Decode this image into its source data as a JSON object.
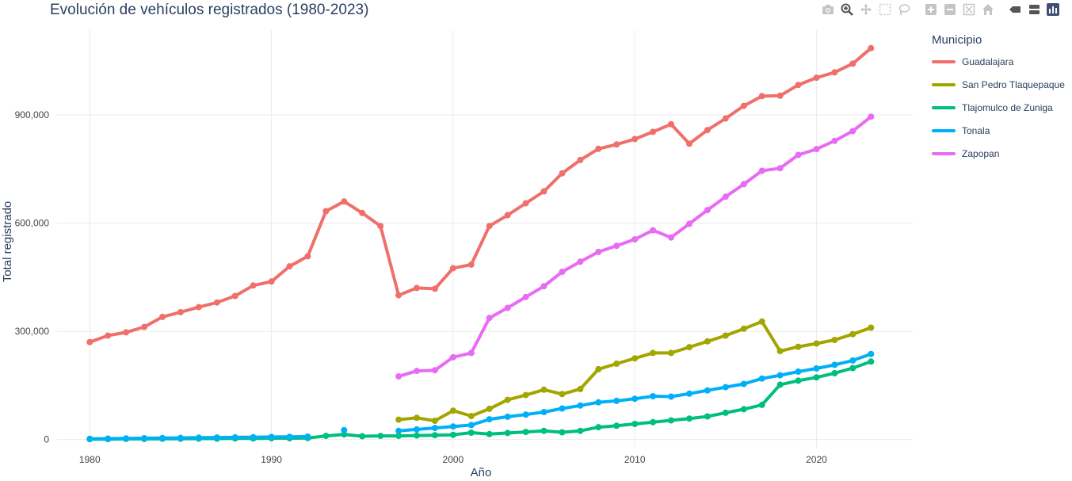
{
  "chart_data": {
    "type": "line",
    "title": "Evolución de vehículos registrados (1980-2023)",
    "xlabel": "Año",
    "ylabel": "Total registrado",
    "xlim": [
      1978.2,
      2025.3
    ],
    "ylim": [
      -25000,
      1135000
    ],
    "x_ticks": [
      1980,
      1990,
      2000,
      2010,
      2020
    ],
    "x_tick_labels": [
      "1980",
      "1990",
      "2000",
      "2010",
      "2020"
    ],
    "y_ticks": [
      0,
      300000,
      600000,
      900000
    ],
    "y_tick_labels": [
      "0",
      "300,000",
      "600,000",
      "900,000"
    ],
    "grid": true,
    "legend_title": "Municipio",
    "legend_position": "right",
    "series": [
      {
        "name": "Guadalajara",
        "color": "#EF6F6A",
        "x": [
          1980,
          1981,
          1982,
          1983,
          1984,
          1985,
          1986,
          1987,
          1988,
          1989,
          1990,
          1991,
          1992,
          1993,
          1994,
          1995,
          1996,
          1997,
          1998,
          1999,
          2000,
          2001,
          2002,
          2003,
          2004,
          2005,
          2006,
          2007,
          2008,
          2009,
          2010,
          2011,
          2012,
          2013,
          2014,
          2015,
          2016,
          2017,
          2018,
          2019,
          2020,
          2021,
          2022,
          2023
        ],
        "values": [
          270000,
          288000,
          297000,
          312000,
          340000,
          353000,
          367000,
          380000,
          398000,
          427000,
          438000,
          480000,
          508000,
          633000,
          660000,
          628000,
          592000,
          400000,
          420000,
          418000,
          475000,
          485000,
          592000,
          622000,
          655000,
          688000,
          738000,
          775000,
          806000,
          818000,
          833000,
          853000,
          874000,
          820000,
          858000,
          890000,
          925000,
          952000,
          953000,
          983000,
          1003000,
          1018000,
          1042000,
          1085000
        ]
      },
      {
        "name": "San Pedro Tlaquepaque",
        "color": "#A3A500",
        "x": [
          1997,
          1998,
          1999,
          2000,
          2001,
          2002,
          2003,
          2004,
          2005,
          2006,
          2007,
          2008,
          2009,
          2010,
          2011,
          2012,
          2013,
          2014,
          2015,
          2016,
          2017,
          2018,
          2019,
          2020,
          2021,
          2022,
          2023
        ],
        "values": [
          55000,
          60000,
          52000,
          80000,
          65000,
          85000,
          110000,
          123000,
          138000,
          126000,
          140000,
          195000,
          210000,
          225000,
          240000,
          240000,
          256000,
          272000,
          288000,
          307000,
          327000,
          245000,
          257000,
          266000,
          276000,
          292000,
          310000
        ]
      },
      {
        "name": "Tlajomulco de Zuniga",
        "color": "#00BF7D",
        "x": [
          1980,
          1981,
          1982,
          1983,
          1984,
          1985,
          1986,
          1987,
          1988,
          1989,
          1990,
          1991,
          1992,
          1993,
          1994,
          1995,
          1996,
          1997,
          1998,
          1999,
          2000,
          2001,
          2002,
          2003,
          2004,
          2005,
          2006,
          2007,
          2008,
          2009,
          2010,
          2011,
          2012,
          2013,
          2014,
          2015,
          2016,
          2017,
          2018,
          2019,
          2020,
          2021,
          2022,
          2023
        ],
        "values": [
          1000,
          1000,
          1500,
          1500,
          2000,
          2000,
          2500,
          2500,
          3000,
          3000,
          3500,
          3500,
          4000,
          10000,
          14000,
          9000,
          10000,
          10000,
          11000,
          12000,
          13000,
          19000,
          15000,
          18000,
          21000,
          24000,
          20000,
          24000,
          34000,
          38000,
          43000,
          48000,
          53000,
          58000,
          64000,
          74000,
          84000,
          96000,
          152000,
          163000,
          172000,
          184000,
          198000,
          216000
        ]
      },
      {
        "name": "Tonala",
        "color": "#00B0F6",
        "x": [
          1980,
          1981,
          1982,
          1983,
          1984,
          1985,
          1986,
          1987,
          1988,
          1989,
          1990,
          1991,
          1992,
          1994,
          1997,
          1998,
          1999,
          2000,
          2001,
          2002,
          2003,
          2004,
          2005,
          2006,
          2007,
          2008,
          2009,
          2010,
          2011,
          2012,
          2013,
          2014,
          2015,
          2016,
          2017,
          2018,
          2019,
          2020,
          2021,
          2022,
          2023
        ],
        "values": [
          2000,
          2500,
          3000,
          3500,
          4000,
          4500,
          5000,
          5500,
          6000,
          6500,
          7000,
          7500,
          8000,
          26000,
          24000,
          28000,
          32000,
          36000,
          40000,
          56000,
          63000,
          69000,
          76000,
          86000,
          94000,
          103000,
          107000,
          113000,
          120000,
          119000,
          127000,
          136000,
          145000,
          154000,
          169000,
          178000,
          188000,
          197000,
          207000,
          219000,
          237000
        ]
      },
      {
        "name": "Zapopan",
        "color": "#E76BF3",
        "x": [
          1997,
          1998,
          1999,
          2000,
          2001,
          2002,
          2003,
          2004,
          2005,
          2006,
          2007,
          2008,
          2009,
          2010,
          2011,
          2012,
          2013,
          2014,
          2015,
          2016,
          2017,
          2018,
          2019,
          2020,
          2021,
          2022,
          2023
        ],
        "values": [
          175000,
          190000,
          192000,
          228000,
          240000,
          337000,
          365000,
          395000,
          425000,
          465000,
          493000,
          520000,
          537000,
          555000,
          580000,
          560000,
          598000,
          636000,
          673000,
          708000,
          745000,
          752000,
          789000,
          805000,
          828000,
          855000,
          895000
        ]
      }
    ]
  }
}
